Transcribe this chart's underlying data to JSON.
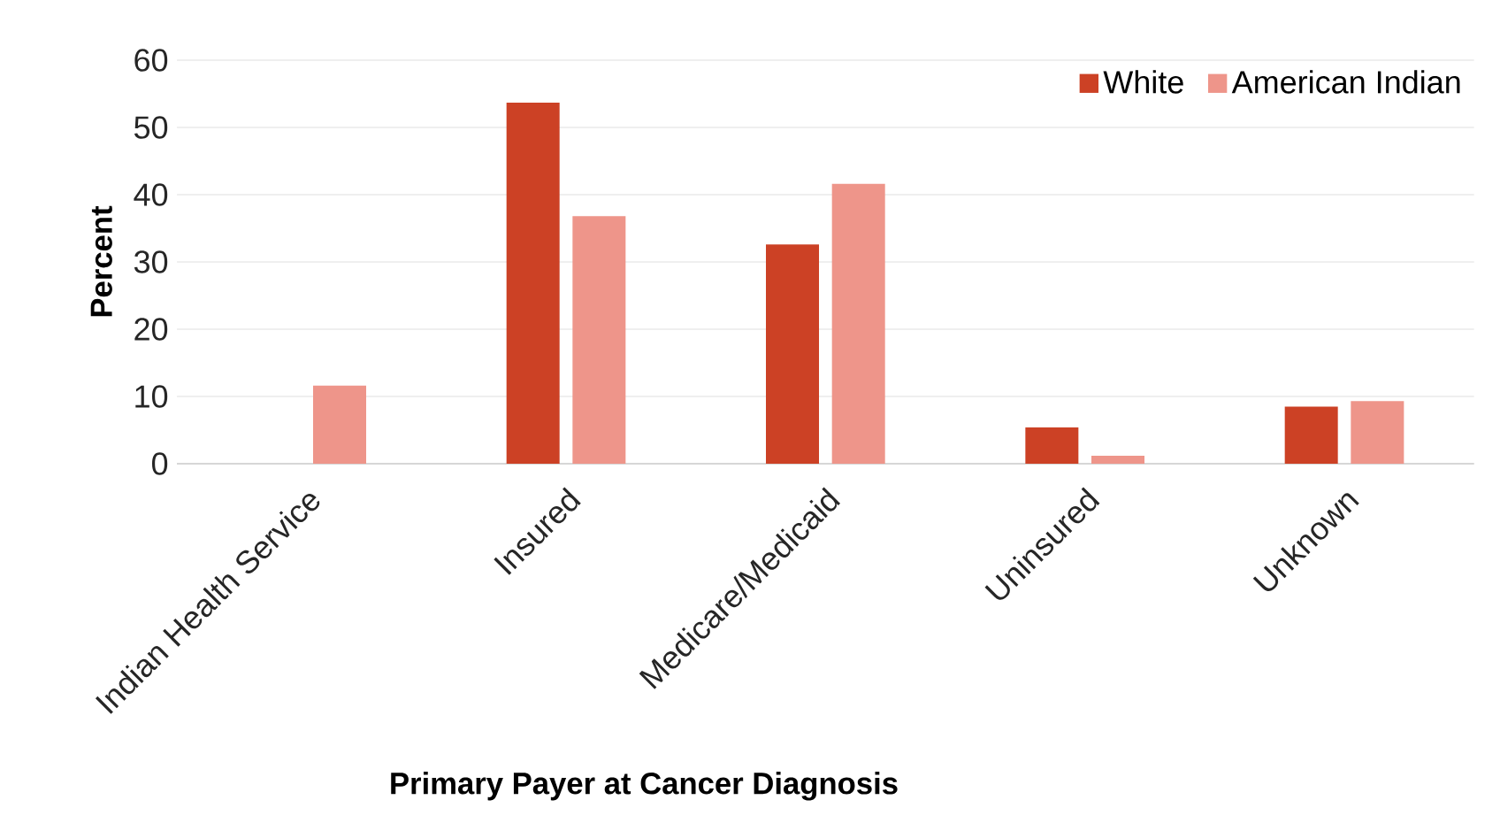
{
  "chart_data": {
    "type": "bar",
    "xlabel": "Primary Payer at Cancer Diagnosis",
    "ylabel": "Percent",
    "categories": [
      "Indian Health Service",
      "Insured",
      "Medicare/Medicaid",
      "Uninsured",
      "Unknown"
    ],
    "series": [
      {
        "name": "White",
        "color": "#cc4125",
        "values": [
          null,
          53.7,
          32.6,
          5.4,
          8.5
        ]
      },
      {
        "name": "American Indian",
        "color": "#ee958a",
        "values": [
          11.6,
          36.8,
          41.6,
          1.2,
          9.3
        ]
      }
    ],
    "ylim": [
      0,
      60
    ],
    "yticks": [
      0,
      10,
      20,
      30,
      40,
      50,
      60
    ],
    "grid": "y",
    "legend": "top right"
  }
}
